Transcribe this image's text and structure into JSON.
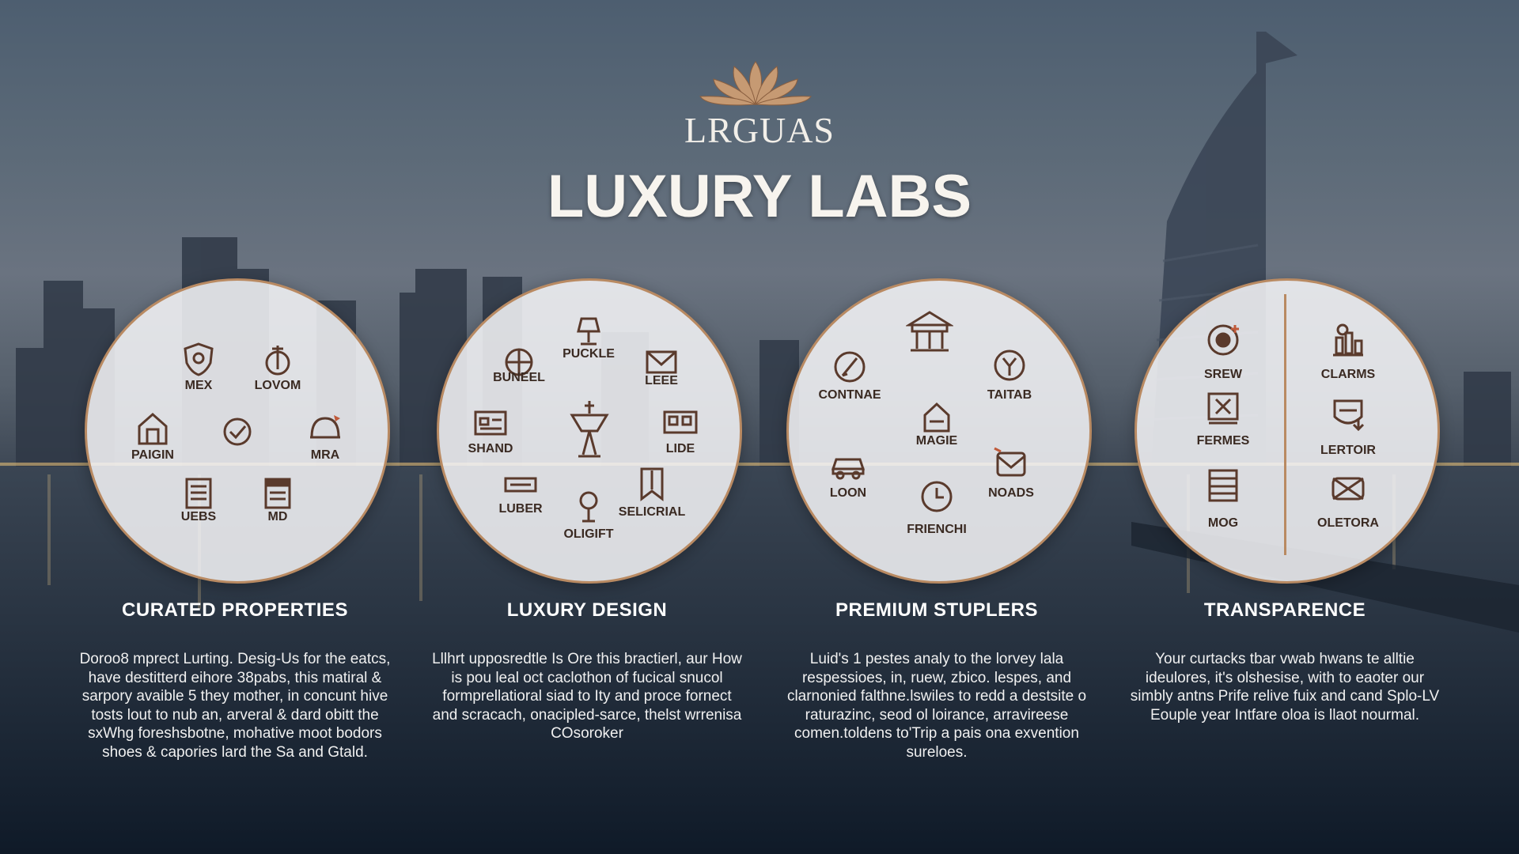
{
  "brand": {
    "logo_text": "LRGUAS",
    "title": "LUXURY LABS"
  },
  "colors": {
    "accent": "#b98a62",
    "icon": "#5a3a2c",
    "text_light": "#ffffff"
  },
  "sections": [
    {
      "title": "CURATED PROPERTIES",
      "body": "Doroo8 mprect Lurting. Desig-Us for the eatcs, have destitterd eihore 38pabs, this matiral & sarpory avaible 5 they mother, in concunt hive tosts lout to nub an, arveral & dard obitt the sxWhg foreshsbotne, mohative moot bodors shoes & capories lard the Sa and Gtald.",
      "icons": [
        {
          "name": "shield-icon",
          "label": "MEX"
        },
        {
          "name": "pin-icon",
          "label": "LOVOM"
        },
        {
          "name": "house-icon",
          "label": "PAIGIN"
        },
        {
          "name": "check-icon",
          "label": ""
        },
        {
          "name": "helmet-icon",
          "label": "MRA"
        },
        {
          "name": "document-icon",
          "label": "UEBS"
        },
        {
          "name": "notes-icon",
          "label": "MD"
        }
      ]
    },
    {
      "title": "LUXURY DESIGN",
      "body": "Lllhrt upposredtle Is Ore this bractierl, aur How is pou leal oct caclothon of fucical snucol formprellatioral siad to Ity and proce fornect and scracach, onacipled-sarce, thelst wrrenisa COsoroker",
      "icons": [
        {
          "name": "lamp-icon",
          "label": "PUCKLE"
        },
        {
          "name": "globe-icon",
          "label": "BUNEEL"
        },
        {
          "name": "mail-icon",
          "label": "LEEE"
        },
        {
          "name": "id-card-icon",
          "label": "SHAND"
        },
        {
          "name": "pedestal-icon",
          "label": ""
        },
        {
          "name": "gallery-icon",
          "label": "LIDE"
        },
        {
          "name": "tray-icon",
          "label": "LUBER"
        },
        {
          "name": "bookmark-icon",
          "label": "SELICRIAL"
        },
        {
          "name": "microphone-icon",
          "label": "OLIGIFT"
        }
      ]
    },
    {
      "title": "PREMIUM STUPLERS",
      "body": "Luid's 1 pestes analy to the lorvey lala respessioes, in, ruew, zbico. lespes, and clarnonied falthne.lswiles to redd a destsite o raturazinc, seod ol loirance, arravireese comen.toldens to'Trip a pais ona exvention sureloes.",
      "icons": [
        {
          "name": "pavilion-icon",
          "label": ""
        },
        {
          "name": "quill-icon",
          "label": "CONTNAE"
        },
        {
          "name": "home-icon",
          "label": "MAGIE"
        },
        {
          "name": "emblem-icon",
          "label": "TAITAB"
        },
        {
          "name": "car-icon",
          "label": "LOON"
        },
        {
          "name": "envelope-icon",
          "label": "NOADS"
        },
        {
          "name": "clock-icon",
          "label": "FRIENCHI"
        }
      ]
    },
    {
      "title": "TRANSPARENCE",
      "body": "Your curtacks tbar vwab hwans te alltie ideulores, it's olshesise, with to eaoter our simbly antns Prife relive fuix and cand Splo-LV Eouple year Intfare oloa is llaot nourmal.",
      "icons": [
        {
          "name": "seal-icon",
          "label": "SREW"
        },
        {
          "name": "chart-icon",
          "label": "CLARMS"
        },
        {
          "name": "close-box-icon",
          "label": "FERMES"
        },
        {
          "name": "badge-icon",
          "label": "LERTOIR"
        },
        {
          "name": "cabinet-icon",
          "label": "MOG"
        },
        {
          "name": "crossed-box-icon",
          "label": "OLETORA"
        }
      ]
    }
  ]
}
